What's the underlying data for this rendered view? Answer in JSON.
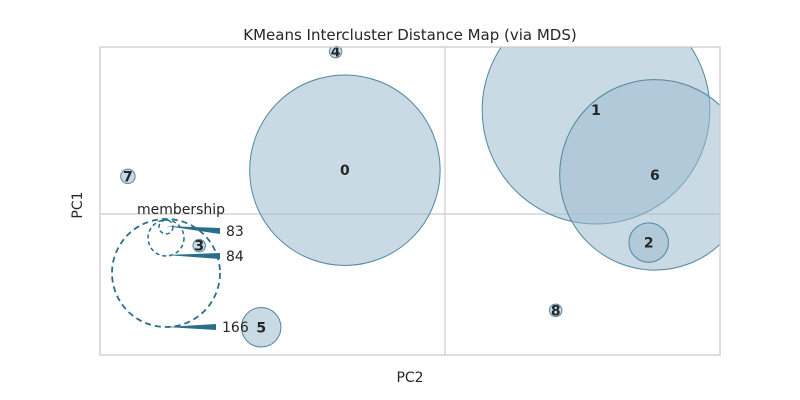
{
  "chart_data": {
    "type": "scatter",
    "title": "KMeans Intercluster Distance Map (via MDS)",
    "xlabel": "PC2",
    "ylabel": "PC1",
    "xlim": [
      -1.0,
      1.0
    ],
    "ylim": [
      -1.0,
      1.0
    ],
    "grid": false,
    "center_lines": true,
    "point_color": "#9dbccd",
    "edge_color": "#4f87a3",
    "legend": {
      "title": "membership",
      "placement": "center-left",
      "values": [
        "83",
        "84",
        "166"
      ],
      "line_color": "#2a6e8c"
    },
    "clusters": [
      {
        "label": "0",
        "x": -0.21,
        "y": 0.2,
        "size": 700
      },
      {
        "label": "1",
        "x": 0.6,
        "y": 0.59,
        "size": 1000
      },
      {
        "label": "2",
        "x": 0.77,
        "y": -0.27,
        "size": 30
      },
      {
        "label": "3",
        "x": -0.68,
        "y": -0.29,
        "size": 3
      },
      {
        "label": "4",
        "x": -0.24,
        "y": 0.97,
        "size": 3
      },
      {
        "label": "5",
        "x": -0.48,
        "y": -0.82,
        "size": 30
      },
      {
        "label": "6",
        "x": 0.79,
        "y": 0.17,
        "size": 700
      },
      {
        "label": "7",
        "x": -0.91,
        "y": 0.16,
        "size": 4
      },
      {
        "label": "8",
        "x": 0.47,
        "y": -0.71,
        "size": 3
      }
    ]
  }
}
